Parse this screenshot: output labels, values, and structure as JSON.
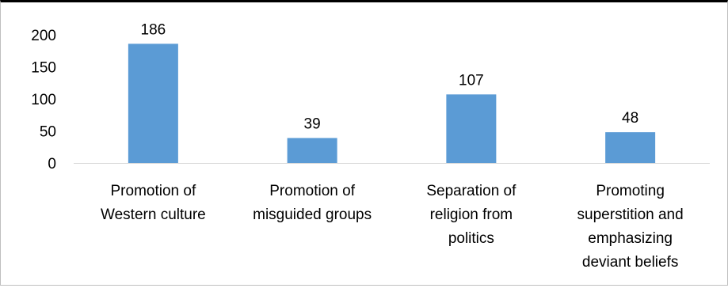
{
  "chart_data": {
    "type": "bar",
    "categories": [
      [
        "Promotion of",
        "Western culture"
      ],
      [
        "Promotion of",
        "misguided groups"
      ],
      [
        "Separation of",
        "religion from",
        "politics"
      ],
      [
        "Promoting",
        "superstition and",
        "emphasizing",
        "deviant beliefs"
      ]
    ],
    "values": [
      186,
      39,
      107,
      48
    ],
    "ylim": [
      0,
      200
    ],
    "yticks": [
      0,
      50,
      100,
      150,
      200
    ],
    "grid": false,
    "bar_color": "#5b9bd5",
    "axis_color": "#d9d9d9"
  }
}
